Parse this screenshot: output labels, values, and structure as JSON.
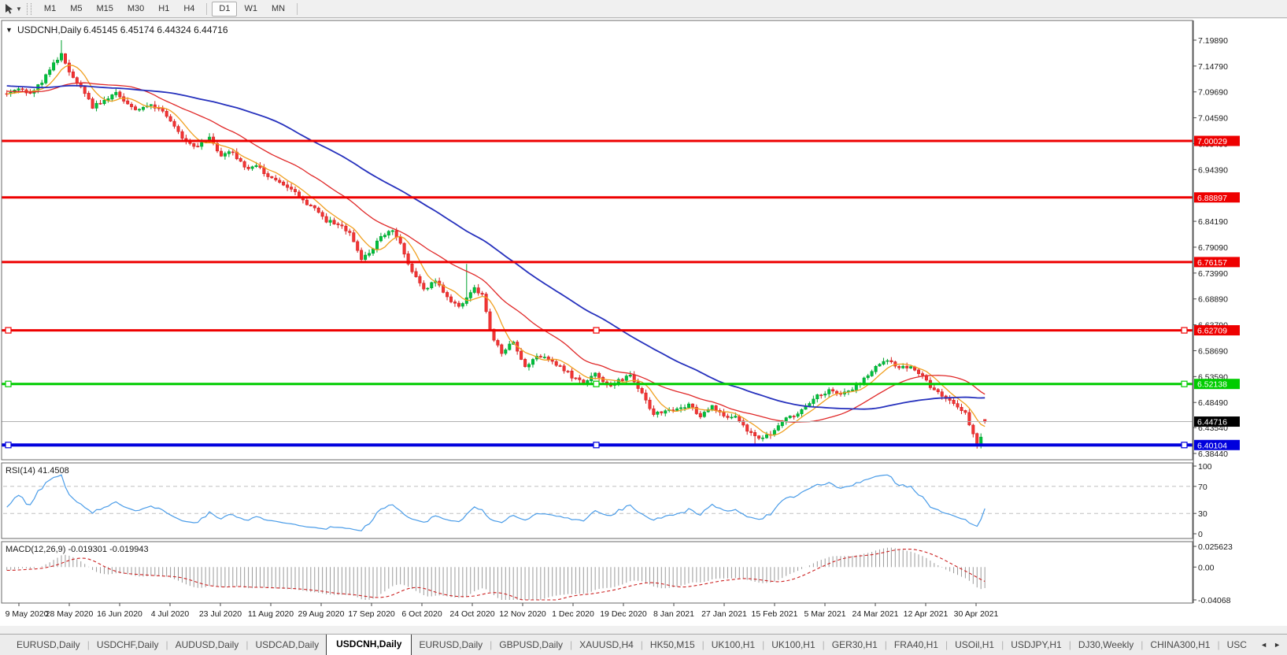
{
  "icons": {
    "collapse": "▼",
    "cursor_dropdown": "▼",
    "tab_scroll_left": "◄",
    "tab_scroll_right": "►"
  },
  "toolbar": {
    "timeframes": [
      "M1",
      "M5",
      "M15",
      "M30",
      "H1",
      "H4",
      "D1",
      "W1",
      "MN"
    ],
    "active": "D1"
  },
  "chart": {
    "title_symbol": "USDCNH,Daily",
    "title_quote": "6.45145 6.45174 6.44324 6.44716"
  },
  "chart_data": {
    "type": "candlestick",
    "symbol": "USDCNH",
    "timeframe": "Daily",
    "current_ohlc": {
      "open": 6.45145,
      "high": 6.45174,
      "low": 6.44324,
      "close": 6.44716
    },
    "current_price_label": "6.44716",
    "current_price": 6.44716,
    "bars": 252,
    "y_ticks": [
      "7.19890",
      "7.14790",
      "7.09690",
      "7.04590",
      "6.99490",
      "6.94390",
      "6.84190",
      "6.79090",
      "6.73990",
      "6.68890",
      "6.63790",
      "6.58690",
      "6.53590",
      "6.48490",
      "6.43540",
      "6.38440"
    ],
    "x_labels": [
      "9 May 2020",
      "28 May 2020",
      "16 Jun 2020",
      "4 Jul 2020",
      "23 Jul 2020",
      "11 Aug 2020",
      "29 Aug 2020",
      "17 Sep 2020",
      "6 Oct 2020",
      "24 Oct 2020",
      "12 Nov 2020",
      "1 Dec 2020",
      "19 Dec 2020",
      "8 Jan 2021",
      "27 Jan 2021",
      "15 Feb 2021",
      "5 Mar 2021",
      "24 Mar 2021",
      "12 Apr 2021",
      "30 Apr 2021"
    ],
    "horizontal_lines": [
      {
        "label": "7.00029",
        "price": 7.00029,
        "color": "#ee0000",
        "width": 3,
        "selected": false
      },
      {
        "label": "6.88897",
        "price": 6.88897,
        "color": "#ee0000",
        "width": 3,
        "selected": false
      },
      {
        "label": "6.76157",
        "price": 6.76157,
        "color": "#ee0000",
        "width": 3,
        "selected": false
      },
      {
        "label": "6.62709",
        "price": 6.62709,
        "color": "#ee0000",
        "width": 3,
        "selected": true
      },
      {
        "label": "6.52138",
        "price": 6.52138,
        "color": "#00cc00",
        "width": 3,
        "selected": true
      },
      {
        "label": "6.40104",
        "price": 6.40104,
        "color": "#0000dd",
        "width": 4,
        "selected": true
      }
    ],
    "candles": {
      "up_fill": "#00c13e",
      "up_stroke": "#00a22e",
      "down_fill": "#f23535",
      "down_stroke": "#d42020"
    },
    "moving_averages": [
      {
        "name": "fast",
        "period": 7,
        "color": "#f0a020"
      },
      {
        "name": "medium",
        "period": 25,
        "color": "#e02828"
      },
      {
        "name": "slow",
        "period": 60,
        "color": "#2631bd"
      }
    ],
    "close_waypoints": [
      [
        0,
        7.095
      ],
      [
        3,
        7.103
      ],
      [
        6,
        7.094
      ],
      [
        9,
        7.118
      ],
      [
        12,
        7.152
      ],
      [
        14,
        7.172
      ],
      [
        16,
        7.136
      ],
      [
        19,
        7.104
      ],
      [
        22,
        7.068
      ],
      [
        25,
        7.082
      ],
      [
        28,
        7.094
      ],
      [
        31,
        7.07
      ],
      [
        34,
        7.062
      ],
      [
        37,
        7.072
      ],
      [
        40,
        7.058
      ],
      [
        43,
        7.028
      ],
      [
        46,
        6.998
      ],
      [
        49,
        6.988
      ],
      [
        52,
        7.006
      ],
      [
        55,
        6.972
      ],
      [
        58,
        6.978
      ],
      [
        61,
        6.946
      ],
      [
        64,
        6.952
      ],
      [
        67,
        6.93
      ],
      [
        70,
        6.917
      ],
      [
        73,
        6.905
      ],
      [
        76,
        6.882
      ],
      [
        79,
        6.867
      ],
      [
        82,
        6.843
      ],
      [
        85,
        6.838
      ],
      [
        88,
        6.817
      ],
      [
        91,
        6.768
      ],
      [
        93,
        6.776
      ],
      [
        96,
        6.812
      ],
      [
        99,
        6.824
      ],
      [
        101,
        6.798
      ],
      [
        104,
        6.742
      ],
      [
        107,
        6.706
      ],
      [
        110,
        6.724
      ],
      [
        113,
        6.692
      ],
      [
        116,
        6.673
      ],
      [
        118,
        6.691
      ],
      [
        120,
        6.711
      ],
      [
        122,
        6.697
      ],
      [
        124,
        6.626
      ],
      [
        127,
        6.579
      ],
      [
        130,
        6.607
      ],
      [
        133,
        6.553
      ],
      [
        136,
        6.579
      ],
      [
        139,
        6.567
      ],
      [
        142,
        6.557
      ],
      [
        145,
        6.536
      ],
      [
        148,
        6.522
      ],
      [
        151,
        6.541
      ],
      [
        154,
        6.518
      ],
      [
        157,
        6.527
      ],
      [
        160,
        6.538
      ],
      [
        163,
        6.502
      ],
      [
        166,
        6.463
      ],
      [
        169,
        6.468
      ],
      [
        172,
        6.472
      ],
      [
        175,
        6.481
      ],
      [
        178,
        6.458
      ],
      [
        181,
        6.477
      ],
      [
        184,
        6.456
      ],
      [
        187,
        6.458
      ],
      [
        190,
        6.428
      ],
      [
        193,
        6.416
      ],
      [
        196,
        6.423
      ],
      [
        199,
        6.451
      ],
      [
        202,
        6.458
      ],
      [
        205,
        6.477
      ],
      [
        208,
        6.497
      ],
      [
        211,
        6.507
      ],
      [
        214,
        6.498
      ],
      [
        217,
        6.511
      ],
      [
        220,
        6.531
      ],
      [
        223,
        6.557
      ],
      [
        226,
        6.567
      ],
      [
        229,
        6.552
      ],
      [
        232,
        6.557
      ],
      [
        235,
        6.536
      ],
      [
        238,
        6.508
      ],
      [
        241,
        6.492
      ],
      [
        244,
        6.478
      ],
      [
        246,
        6.462
      ],
      [
        248,
        6.423
      ],
      [
        249,
        6.403
      ],
      [
        250,
        6.418
      ],
      [
        251,
        6.44716
      ]
    ],
    "spikes": [
      {
        "bar": 14,
        "high": 7.1989
      },
      {
        "bar": 118,
        "high": 6.758
      },
      {
        "bar": 192,
        "low": 6.399
      },
      {
        "bar": 249,
        "low": 6.394
      }
    ],
    "rsi": {
      "label": "RSI(14) 41.4508",
      "period": 14,
      "value": 41.4508,
      "levels": [
        70,
        30
      ],
      "scale_labels": [
        "100",
        "70",
        "30",
        "0"
      ],
      "color": "#4a9ce8",
      "level_color": "#c0c0c0"
    },
    "macd": {
      "label": "MACD(12,26,9) -0.019301 -0.019943",
      "fast": 12,
      "slow": 26,
      "signal": 9,
      "macd_value": -0.019301,
      "signal_value": -0.019943,
      "scale_labels": [
        "0.025623",
        "0.00",
        "-0.04068"
      ],
      "max": 0.025623,
      "min": -0.04068,
      "histogram_color": "#9a9a9a",
      "signal_color": "#cc2222"
    }
  },
  "bottom_tabs": {
    "tabs": [
      "EURUSD,Daily",
      "USDCHF,Daily",
      "AUDUSD,Daily",
      "USDCAD,Daily",
      "USDCNH,Daily",
      "EURUSD,Daily",
      "GBPUSD,Daily",
      "XAUUSD,H4",
      "HK50,M15",
      "UK100,H1",
      "UK100,H1",
      "GER30,H1",
      "FRA40,H1",
      "USOil,H1",
      "USDJPY,H1",
      "DJ30,Weekly",
      "CHINA300,H1",
      "USC"
    ],
    "active_index": 4
  }
}
